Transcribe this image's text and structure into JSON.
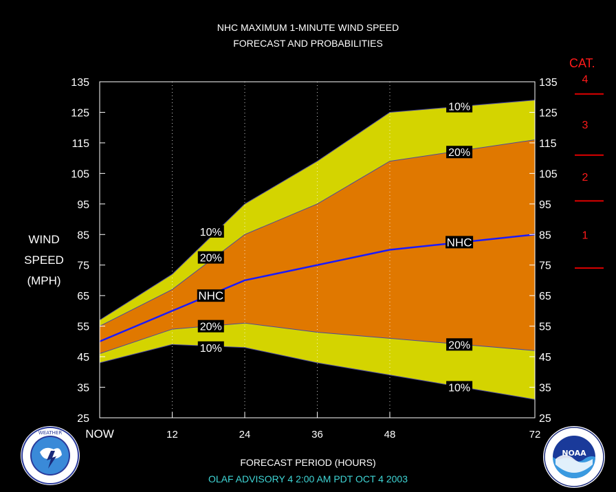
{
  "chart_data": {
    "type": "area",
    "title_line1": "NHC MAXIMUM 1-MINUTE WIND SPEED",
    "title_line2": "FORECAST AND PROBABILITIES",
    "ylabel_lines": [
      "WIND",
      "SPEED",
      "(MPH)"
    ],
    "xlabel": "FORECAST PERIOD (HOURS)",
    "ylim": [
      25,
      135
    ],
    "y_ticks": [
      25,
      35,
      45,
      55,
      65,
      75,
      85,
      95,
      105,
      115,
      125,
      135
    ],
    "x_ticks": [
      {
        "x": 0,
        "label": "NOW"
      },
      {
        "x": 12,
        "label": "12"
      },
      {
        "x": 24,
        "label": "24"
      },
      {
        "x": 36,
        "label": "36"
      },
      {
        "x": 48,
        "label": "48"
      },
      {
        "x": 72,
        "label": "72"
      }
    ],
    "xlim": [
      0,
      72
    ],
    "grid": "vertical dotted",
    "x": [
      0,
      12,
      24,
      36,
      48,
      72
    ],
    "bands": {
      "upper_10": [
        57,
        72,
        95,
        109,
        125,
        129
      ],
      "upper_20": [
        55,
        67,
        85,
        95,
        109,
        116
      ],
      "nhc": [
        50,
        60,
        70,
        75,
        80,
        85
      ],
      "lower_20": [
        46,
        54,
        56,
        53,
        51,
        47
      ],
      "lower_10": [
        43,
        49,
        48,
        43,
        39,
        31
      ]
    },
    "colors": {
      "outer": "#d4d400",
      "inner": "#e07800",
      "nhc_line": "#1a1aff",
      "band_edge": "#4a4aa0",
      "grid": "#ffffff"
    },
    "labels": [
      {
        "text": "10%",
        "x": 18.4,
        "y": 86
      },
      {
        "text": "20%",
        "x": 18.4,
        "y": 77.5
      },
      {
        "text": "NHC",
        "x": 18.4,
        "y": 65
      },
      {
        "text": "20%",
        "x": 18.4,
        "y": 55
      },
      {
        "text": "10%",
        "x": 18.4,
        "y": 48
      },
      {
        "text": "10%",
        "x": 59.5,
        "y": 127
      },
      {
        "text": "20%",
        "x": 59.5,
        "y": 112
      },
      {
        "text": "NHC",
        "x": 59.5,
        "y": 82.5
      },
      {
        "text": "20%",
        "x": 59.5,
        "y": 49
      },
      {
        "text": "10%",
        "x": 59.5,
        "y": 35
      }
    ],
    "category": {
      "header": "CAT.",
      "boundaries": [
        74,
        96,
        111,
        131
      ],
      "labels": [
        {
          "text": "1",
          "y": 85
        },
        {
          "text": "2",
          "y": 104
        },
        {
          "text": "3",
          "y": 121
        },
        {
          "text": "4",
          "y": 136
        }
      ]
    }
  },
  "footer": {
    "advisory": "OLAF   ADVISORY  4 2:00  AM  PDT  OCT  4 2003"
  },
  "logos": {
    "left": "nws-logo",
    "right": "noaa-logo"
  }
}
